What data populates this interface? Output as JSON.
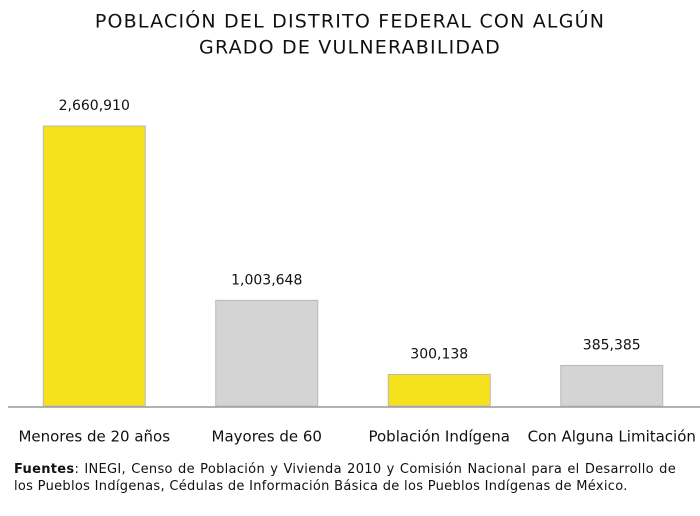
{
  "chart_data": {
    "type": "bar",
    "title": [
      "POBLACIÓN DEL DISTRITO FEDERAL CON ALGÚN",
      "GRADO DE VULNERABILIDAD"
    ],
    "categories": [
      "Menores de 20 años",
      "Mayores de 60",
      "Población Indígena",
      "Con Alguna Limitación"
    ],
    "values": [
      2660910,
      1003648,
      300138,
      385385
    ],
    "value_labels": [
      "2,660,910",
      "1,003,648",
      "300,138",
      "385,385"
    ],
    "colors": [
      "#f5e11c",
      "#d4d4d4",
      "#f5e11c",
      "#d4d4d4"
    ],
    "note": {
      "label": "Fuentes",
      "text": ": INEGI, Censo de Población y Vivienda 2010 y Comisión Nacional para el Desarrollo de los Pueblos Indígenas, Cédulas de Información Básica de los Pueblos Indígenas de México."
    }
  }
}
